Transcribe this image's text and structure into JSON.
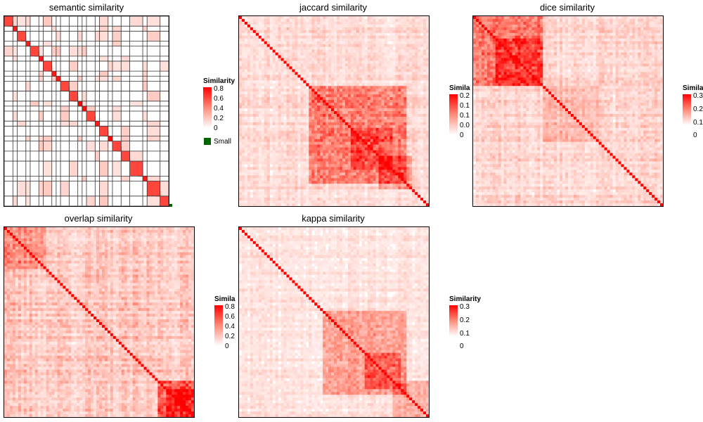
{
  "chart_data": [
    {
      "type": "heatmap",
      "title": "semantic similarity",
      "legend": {
        "title": "Similarity",
        "ticks": [
          "0.8",
          "0.6",
          "0.4",
          "0.2",
          "0"
        ],
        "extra_key": "Small"
      },
      "colors": {
        "high": "#ff0000",
        "mid": "#ff8c7a",
        "low": "#ffffff",
        "grid": "#333333",
        "small": "#006400"
      },
      "range": [
        0,
        0.8
      ]
    },
    {
      "type": "heatmap",
      "title": "jaccard similarity",
      "legend": {
        "title": "Similarity",
        "ticks": [
          "0.2",
          "0.1",
          "0.1",
          "0.0",
          "0"
        ]
      },
      "colors": {
        "high": "#ff0000",
        "low": "#ffffff"
      },
      "range": [
        0,
        0.2
      ]
    },
    {
      "type": "heatmap",
      "title": "dice similarity",
      "legend": {
        "title": "Similarity",
        "ticks": [
          "0.3",
          "0.2",
          "0.1",
          "0"
        ]
      },
      "colors": {
        "high": "#ff0000",
        "low": "#ffffff"
      },
      "range": [
        0,
        0.3
      ]
    },
    {
      "type": "heatmap",
      "title": "overlap similarity",
      "legend": {
        "title": "Similarity",
        "ticks": [
          "0.8",
          "0.6",
          "0.4",
          "0.2",
          "0"
        ]
      },
      "colors": {
        "high": "#ff0000",
        "low": "#ffffff"
      },
      "range": [
        0,
        0.8
      ]
    },
    {
      "type": "heatmap",
      "title": "kappa similarity",
      "legend": {
        "title": "Similarity",
        "ticks": [
          "0.3",
          "0.2",
          "0.1",
          "0"
        ]
      },
      "colors": {
        "high": "#ff0000",
        "low": "#ffffff"
      },
      "range": [
        0,
        0.3
      ]
    }
  ]
}
